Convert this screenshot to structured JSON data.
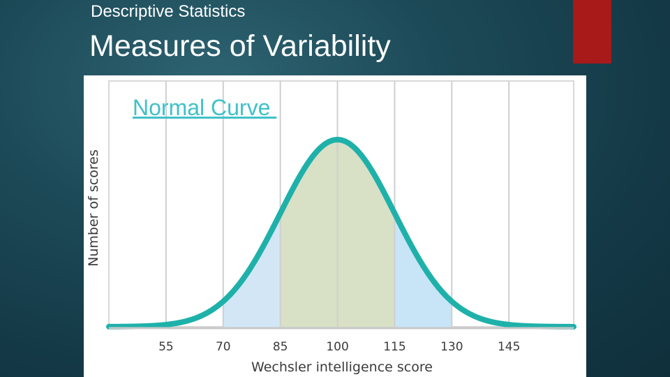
{
  "slide": {
    "subtitle": "Descriptive Statistics",
    "title": "Measures of Variability",
    "accent_color": "#a8191a"
  },
  "link": {
    "label": "Normal Curve "
  },
  "chart_data": {
    "type": "area",
    "xlabel": "Wechsler intelligence score",
    "ylabel": "Number of scores",
    "x_ticks": [
      55,
      70,
      85,
      100,
      115,
      130,
      145
    ],
    "xlim": [
      40,
      162
    ],
    "distribution": {
      "mean": 100,
      "sd": 15
    },
    "shaded_bands": [
      {
        "from": 70,
        "to": 85,
        "color": "#d3e6f6"
      },
      {
        "from": 85,
        "to": 115,
        "color": "#d8e0c6"
      },
      {
        "from": 115,
        "to": 130,
        "color": "#c8e4f7"
      }
    ],
    "curve_color": "#1eb1aa",
    "grid": true
  }
}
